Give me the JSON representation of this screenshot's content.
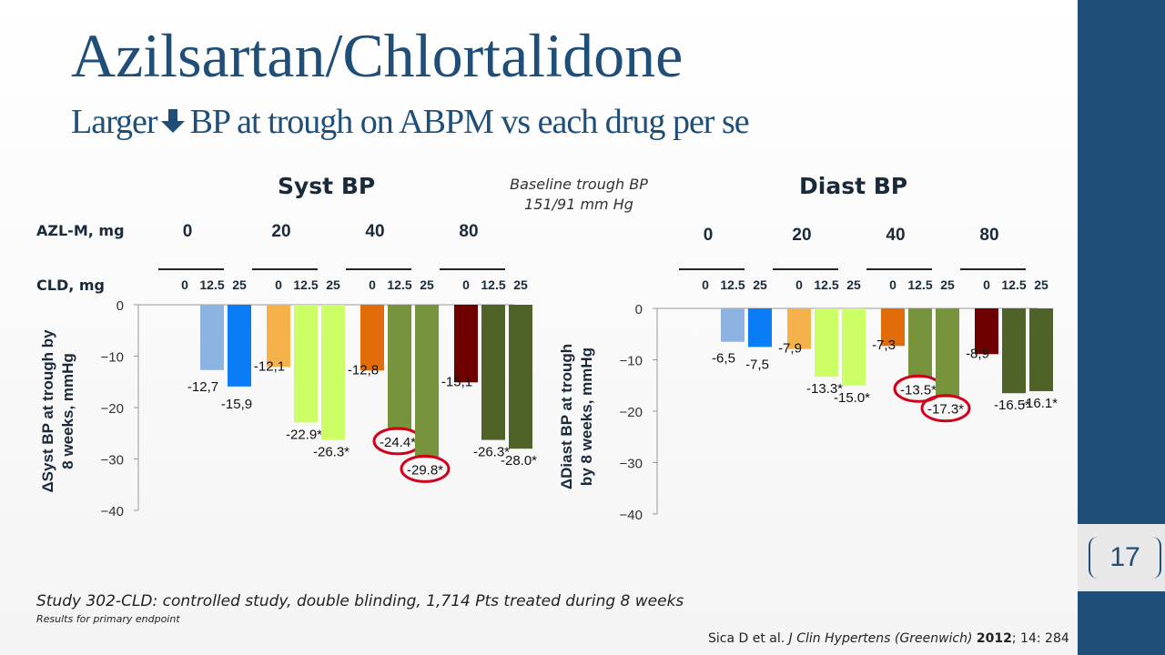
{
  "slide": {
    "title": "Azilsartan/Chlortalidone",
    "subtitle_pre": "Larger",
    "subtitle_post": "BP at trough on ABPM vs each drug per se",
    "baseline_line1": "Baseline trough BP",
    "baseline_line2": "151/91 mm Hg",
    "azl_label": "AZL-M, mg",
    "cld_label": "CLD, mg",
    "footnote": "Study 302-CLD: controlled study, double blinding, 1,714 Pts treated during 8 weeks",
    "footnote_small": "Results for primary endpoint",
    "citation_authors": "Sica D et al.",
    "citation_journal": "J Clin Hypertens (Greenwich)",
    "citation_year": "2012",
    "citation_rest": "; 14: 284",
    "page_number": "17",
    "colors": {
      "brand": "#1f4e79",
      "highlight_ellipse": "#d0021b",
      "bars": {
        "azl0_cld12_5": "#8db3e2",
        "azl0_cld25": "#0a7cf5",
        "azl20_cld0": "#f6b24a",
        "azl20_cld": "#ccff66",
        "azl40_cld0": "#e36c0a",
        "azl40_cld": "#77933c",
        "azl80_cld0": "#6e0000",
        "azl80_cld": "#4f6228"
      }
    }
  },
  "chart_data": [
    {
      "type": "bar",
      "title": "Syst BP",
      "ylabel_line1": "ΔSyst BP at trough by",
      "ylabel_line2": "8 weeks, mmHg",
      "ylim": [
        -40,
        0
      ],
      "yticks": [
        0,
        -10,
        -20,
        -30,
        -40
      ],
      "ytick_labels": [
        "0",
        "−10",
        "−20",
        "−30",
        "−40"
      ],
      "groups": [
        {
          "azl": "0",
          "bars": [
            {
              "cld": "0",
              "value": null,
              "label": ""
            },
            {
              "cld": "12.5",
              "value": -12.7,
              "label": "-12,7",
              "highlight": false
            },
            {
              "cld": "25",
              "value": -15.9,
              "label": "-15,9",
              "highlight": false
            }
          ]
        },
        {
          "azl": "20",
          "bars": [
            {
              "cld": "0",
              "value": -12.1,
              "label": "-12,1",
              "highlight": false
            },
            {
              "cld": "12.5",
              "value": -22.9,
              "label": "-22.9*",
              "highlight": false
            },
            {
              "cld": "25",
              "value": -26.3,
              "label": "-26.3*",
              "highlight": false
            }
          ]
        },
        {
          "azl": "40",
          "bars": [
            {
              "cld": "0",
              "value": -12.8,
              "label": "-12,8",
              "highlight": false
            },
            {
              "cld": "12.5",
              "value": -24.4,
              "label": "-24.4*",
              "highlight": true
            },
            {
              "cld": "25",
              "value": -29.8,
              "label": "-29.8*",
              "highlight": true
            }
          ]
        },
        {
          "azl": "80",
          "bars": [
            {
              "cld": "0",
              "value": -15.1,
              "label": "-15,1",
              "highlight": false
            },
            {
              "cld": "12.5",
              "value": -26.3,
              "label": "-26.3*",
              "highlight": false
            },
            {
              "cld": "25",
              "value": -28.0,
              "label": "-28.0*",
              "highlight": false
            }
          ]
        }
      ]
    },
    {
      "type": "bar",
      "title": "Diast BP",
      "ylabel_line1": "ΔDiast BP at trough",
      "ylabel_line2": "by  8 weeks, mmHg",
      "ylim": [
        -40,
        0
      ],
      "yticks": [
        0,
        -10,
        -20,
        -30,
        -40
      ],
      "ytick_labels": [
        "0",
        "−10",
        "−20",
        "−30",
        "−40"
      ],
      "groups": [
        {
          "azl": "0",
          "bars": [
            {
              "cld": "0",
              "value": null,
              "label": ""
            },
            {
              "cld": "12.5",
              "value": -6.5,
              "label": "-6,5",
              "highlight": false
            },
            {
              "cld": "25",
              "value": -7.5,
              "label": "-7,5",
              "highlight": false
            }
          ]
        },
        {
          "azl": "20",
          "bars": [
            {
              "cld": "0",
              "value": -7.9,
              "label": "-7,9",
              "highlight": false
            },
            {
              "cld": "12.5",
              "value": -13.3,
              "label": "-13.3*",
              "highlight": false
            },
            {
              "cld": "25",
              "value": -15.0,
              "label": "-15.0*",
              "highlight": false
            }
          ]
        },
        {
          "azl": "40",
          "bars": [
            {
              "cld": "0",
              "value": -7.3,
              "label": "-7,3",
              "highlight": false
            },
            {
              "cld": "12.5",
              "value": -13.5,
              "label": "-13.5*",
              "highlight": true
            },
            {
              "cld": "25",
              "value": -17.3,
              "label": "-17.3*",
              "highlight": true
            }
          ]
        },
        {
          "azl": "80",
          "bars": [
            {
              "cld": "0",
              "value": -8.9,
              "label": "-8,9",
              "highlight": false
            },
            {
              "cld": "12.5",
              "value": -16.5,
              "label": "-16.5*",
              "highlight": false
            },
            {
              "cld": "25",
              "value": -16.1,
              "label": "-16.1*",
              "highlight": false
            }
          ]
        }
      ]
    }
  ]
}
